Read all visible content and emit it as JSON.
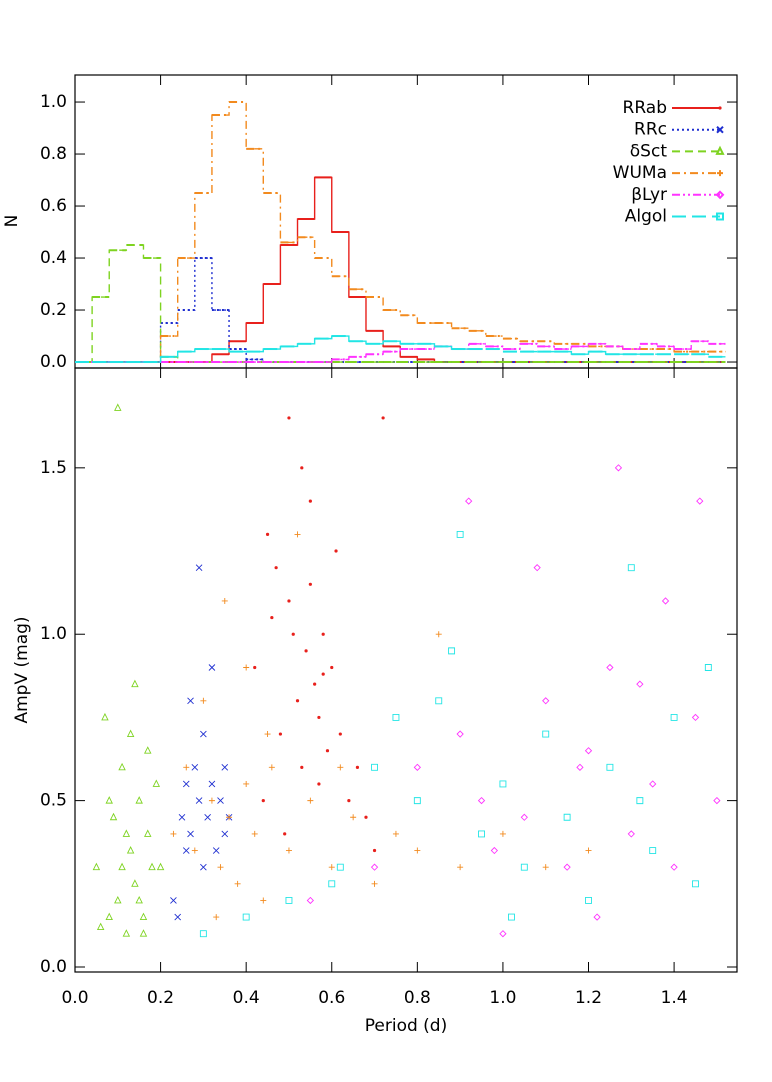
{
  "chart_data": [
    {
      "type": "histogram",
      "ylabel": "N",
      "bins": [
        0,
        0.04,
        0.08,
        0.12,
        0.16,
        0.2,
        0.24,
        0.28,
        0.32,
        0.36,
        0.4,
        0.44,
        0.48,
        0.52,
        0.56,
        0.6,
        0.64,
        0.68,
        0.72,
        0.76,
        0.8,
        0.84,
        0.88,
        0.92,
        0.96,
        1.0,
        1.04,
        1.08,
        1.12,
        1.16,
        1.2,
        1.24,
        1.28,
        1.32,
        1.36,
        1.4,
        1.44,
        1.48,
        1.52
      ],
      "xlim": [
        0,
        1.547
      ],
      "xticks": [
        0,
        0.2,
        0.4,
        0.6,
        0.8,
        1.0,
        1.2,
        1.4
      ],
      "ylim": [
        -0.023,
        1.104
      ],
      "yticks": [
        {
          "value": 0,
          "label": "0.0"
        },
        {
          "value": 0.2,
          "label": "0.2"
        },
        {
          "value": 0.4,
          "label": "0.4"
        },
        {
          "value": 0.6,
          "label": "0.6"
        },
        {
          "value": 0.8,
          "label": "0.8"
        },
        {
          "value": 1.0,
          "label": "1.0"
        }
      ],
      "legend": "upper right",
      "series": [
        {
          "name": "RRab",
          "color": "#e8201c",
          "linestyle": "solid",
          "marker": "dot",
          "values": [
            0,
            0,
            0,
            0,
            0,
            0,
            0,
            0,
            0.03,
            0.08,
            0.15,
            0.3,
            0.45,
            0.55,
            0.71,
            0.5,
            0.25,
            0.12,
            0.06,
            0.02,
            0.01,
            0,
            0,
            0,
            0,
            0,
            0,
            0,
            0,
            0,
            0,
            0,
            0,
            0,
            0,
            0,
            0,
            0
          ]
        },
        {
          "name": "RRc",
          "color": "#1f2fd0",
          "linestyle": "dotted",
          "marker": "x",
          "values": [
            0,
            0,
            0,
            0,
            0,
            0.15,
            0.2,
            0.4,
            0.2,
            0.05,
            0.01,
            0,
            0,
            0,
            0,
            0,
            0,
            0,
            0,
            0,
            0,
            0,
            0,
            0,
            0,
            0,
            0,
            0,
            0,
            0,
            0,
            0,
            0,
            0,
            0,
            0,
            0,
            0
          ]
        },
        {
          "name": "δSct",
          "color": "#7ed321",
          "linestyle": "dashed",
          "marker": "triangle",
          "values": [
            0,
            0.25,
            0.43,
            0.45,
            0.4,
            0.02,
            0,
            0,
            0,
            0,
            0,
            0,
            0,
            0,
            0,
            0,
            0,
            0,
            0,
            0,
            0,
            0,
            0,
            0,
            0,
            0,
            0,
            0,
            0,
            0,
            0,
            0,
            0,
            0,
            0,
            0,
            0,
            0
          ]
        },
        {
          "name": "WUMa",
          "color": "#f28a1e",
          "linestyle": "dashdot",
          "marker": "plus",
          "values": [
            0,
            0,
            0,
            0,
            0,
            0.1,
            0.4,
            0.65,
            0.95,
            1.0,
            0.82,
            0.65,
            0.46,
            0.48,
            0.4,
            0.33,
            0.28,
            0.25,
            0.2,
            0.18,
            0.15,
            0.15,
            0.13,
            0.12,
            0.1,
            0.09,
            0.08,
            0.08,
            0.07,
            0.07,
            0.06,
            0.06,
            0.05,
            0.05,
            0.05,
            0.04,
            0.04,
            0.04
          ]
        },
        {
          "name": "βLyr",
          "color": "#ff33ff",
          "linestyle": "dashdotdot",
          "marker": "diamond",
          "values": [
            0,
            0,
            0,
            0,
            0,
            0,
            0,
            0,
            0,
            0,
            0,
            0,
            0,
            0,
            0,
            0.01,
            0.02,
            0.03,
            0.04,
            0.05,
            0.05,
            0.06,
            0.05,
            0.07,
            0.06,
            0.05,
            0.07,
            0.06,
            0.05,
            0.06,
            0.07,
            0.06,
            0.05,
            0.07,
            0.06,
            0.05,
            0.08,
            0.07
          ]
        },
        {
          "name": "Algol",
          "color": "#22e5e5",
          "linestyle": "longdash",
          "marker": "square",
          "values": [
            0,
            0,
            0,
            0,
            0,
            0.02,
            0.04,
            0.05,
            0.05,
            0.04,
            0.04,
            0.05,
            0.06,
            0.07,
            0.09,
            0.1,
            0.08,
            0.07,
            0.08,
            0.07,
            0.07,
            0.06,
            0.05,
            0.05,
            0.05,
            0.04,
            0.04,
            0.04,
            0.04,
            0.03,
            0.04,
            0.03,
            0.03,
            0.03,
            0.03,
            0.03,
            0.03,
            0.02
          ]
        }
      ]
    },
    {
      "type": "scatter",
      "xlabel": "Period (d)",
      "ylabel": "AmpV (mag)",
      "xlim": [
        0,
        1.547
      ],
      "xticks": [
        {
          "value": 0,
          "label": "0.0"
        },
        {
          "value": 0.2,
          "label": "0.2"
        },
        {
          "value": 0.4,
          "label": "0.4"
        },
        {
          "value": 0.6,
          "label": "0.6"
        },
        {
          "value": 0.8,
          "label": "0.8"
        },
        {
          "value": 1.0,
          "label": "1.0"
        },
        {
          "value": 1.2,
          "label": "1.2"
        },
        {
          "value": 1.4,
          "label": "1.4"
        }
      ],
      "ylim": [
        -0.015,
        1.8
      ],
      "yticks": [
        {
          "value": 0,
          "label": "0.0"
        },
        {
          "value": 0.5,
          "label": "0.5"
        },
        {
          "value": 1.0,
          "label": "1.0"
        },
        {
          "value": 1.5,
          "label": "1.5"
        }
      ],
      "series": [
        {
          "color": "#e8201c",
          "marker": "dot",
          "x": [
            0.42,
            0.45,
            0.47,
            0.48,
            0.5,
            0.51,
            0.52,
            0.53,
            0.54,
            0.55,
            0.56,
            0.57,
            0.58,
            0.59,
            0.6,
            0.62,
            0.64,
            0.66,
            0.68,
            0.7,
            0.5,
            0.55,
            0.57,
            0.49,
            0.61,
            0.46,
            0.53,
            0.72,
            0.44,
            0.58
          ],
          "y": [
            0.9,
            1.3,
            1.2,
            0.7,
            1.1,
            1.0,
            0.8,
            1.5,
            0.95,
            1.15,
            0.85,
            0.75,
            1.0,
            0.65,
            0.9,
            0.7,
            0.5,
            0.6,
            0.45,
            0.35,
            1.65,
            1.4,
            0.55,
            0.4,
            1.25,
            1.05,
            0.6,
            1.65,
            0.5,
            0.88
          ]
        },
        {
          "color": "#1f2fd0",
          "marker": "x",
          "x": [
            0.23,
            0.25,
            0.26,
            0.27,
            0.28,
            0.29,
            0.3,
            0.31,
            0.32,
            0.33,
            0.34,
            0.35,
            0.36,
            0.24,
            0.27,
            0.3,
            0.32,
            0.35,
            0.29,
            0.26
          ],
          "y": [
            0.2,
            0.45,
            0.55,
            0.4,
            0.6,
            0.5,
            0.7,
            0.45,
            0.55,
            0.35,
            0.5,
            0.6,
            0.45,
            0.15,
            0.8,
            0.3,
            0.9,
            0.4,
            1.2,
            0.35
          ]
        },
        {
          "color": "#7ed321",
          "marker": "triangle",
          "x": [
            0.05,
            0.07,
            0.08,
            0.09,
            0.1,
            0.11,
            0.12,
            0.13,
            0.14,
            0.15,
            0.16,
            0.17,
            0.18,
            0.19,
            0.06,
            0.1,
            0.12,
            0.15,
            0.17,
            0.2,
            0.08,
            0.13,
            0.16,
            0.11,
            0.14
          ],
          "y": [
            0.3,
            0.75,
            0.15,
            0.45,
            0.2,
            0.6,
            0.1,
            0.35,
            0.25,
            0.5,
            0.15,
            0.4,
            0.3,
            0.55,
            0.12,
            1.68,
            0.4,
            0.2,
            0.65,
            0.3,
            0.5,
            0.7,
            0.1,
            0.3,
            0.85
          ]
        },
        {
          "color": "#f28a1e",
          "marker": "plus",
          "x": [
            0.23,
            0.26,
            0.28,
            0.3,
            0.32,
            0.34,
            0.36,
            0.38,
            0.4,
            0.42,
            0.44,
            0.46,
            0.5,
            0.55,
            0.6,
            0.65,
            0.7,
            0.75,
            0.8,
            0.9,
            1.0,
            1.1,
            1.2,
            0.35,
            0.4,
            0.33,
            0.45,
            0.52,
            0.62,
            0.85
          ],
          "y": [
            0.4,
            0.6,
            0.35,
            0.8,
            0.5,
            0.3,
            0.45,
            0.25,
            0.55,
            0.4,
            0.2,
            0.6,
            0.35,
            0.5,
            0.3,
            0.45,
            0.25,
            0.4,
            0.35,
            0.3,
            0.4,
            0.3,
            0.35,
            1.1,
            0.9,
            0.15,
            0.7,
            1.3,
            0.6,
            1.0
          ]
        },
        {
          "color": "#ff33ff",
          "marker": "diamond",
          "x": [
            0.55,
            0.7,
            0.8,
            0.9,
            0.95,
            1.0,
            1.05,
            1.1,
            1.15,
            1.2,
            1.25,
            1.3,
            1.35,
            1.4,
            1.45,
            1.5,
            0.92,
            1.08,
            1.22,
            1.38,
            1.46,
            1.27,
            0.98,
            1.32,
            1.18
          ],
          "y": [
            0.2,
            0.3,
            0.6,
            0.7,
            0.5,
            0.1,
            0.45,
            0.8,
            0.3,
            0.65,
            0.9,
            0.4,
            0.55,
            0.3,
            0.75,
            0.5,
            1.4,
            1.2,
            0.15,
            1.1,
            1.4,
            1.5,
            0.35,
            0.85,
            0.6
          ]
        },
        {
          "color": "#22e5e5",
          "marker": "square",
          "x": [
            0.3,
            0.4,
            0.5,
            0.6,
            0.7,
            0.75,
            0.8,
            0.85,
            0.9,
            0.95,
            1.0,
            1.05,
            1.1,
            1.15,
            1.2,
            1.25,
            1.3,
            1.35,
            1.4,
            1.45,
            0.88,
            1.32,
            1.48,
            0.62,
            1.02
          ],
          "y": [
            0.1,
            0.15,
            0.2,
            0.25,
            0.6,
            0.75,
            0.5,
            0.8,
            1.3,
            0.4,
            0.55,
            0.3,
            0.7,
            0.45,
            0.2,
            0.6,
            1.2,
            0.35,
            0.75,
            0.25,
            0.95,
            0.5,
            0.9,
            0.3,
            0.15
          ]
        }
      ]
    }
  ]
}
